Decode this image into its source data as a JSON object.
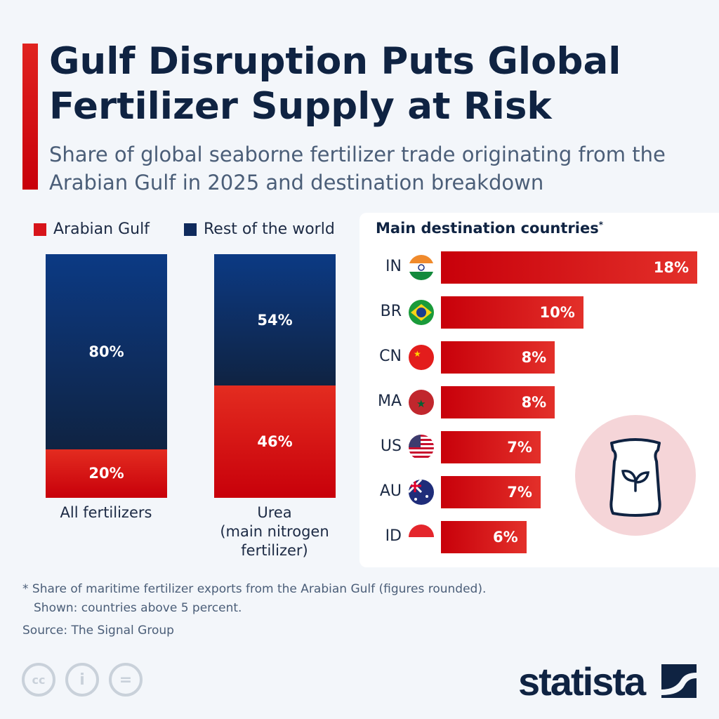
{
  "header": {
    "title": "Gulf Disruption Puts Global Fertilizer Supply at Risk",
    "subtitle": "Share of global seaborne fertilizer trade originating from the Arabian Gulf in 2025 and destination breakdown"
  },
  "colors": {
    "arabian_gulf": "#d7141a",
    "rest_of_world": "#0f2a5c",
    "accent": "#d7141a",
    "navy": "#0f2342",
    "pink_circle": "#f5d5d8"
  },
  "chart_data": [
    {
      "type": "bar",
      "stacked": true,
      "categories": [
        "All fertilizers",
        "Urea\n(main nitrogen fertilizer)"
      ],
      "series": [
        {
          "name": "Arabian Gulf",
          "values": [
            20,
            46
          ],
          "labels": [
            "20%",
            "46%"
          ]
        },
        {
          "name": "Rest of the world",
          "values": [
            80,
            54
          ],
          "labels": [
            "80%",
            "54%"
          ]
        }
      ],
      "legend": "top",
      "ylim": [
        0,
        100
      ]
    },
    {
      "type": "bar",
      "orientation": "horizontal",
      "title": "Main destination countries",
      "title_marker": "*",
      "categories": [
        "IN",
        "BR",
        "CN",
        "MA",
        "US",
        "AU",
        "ID"
      ],
      "flags": [
        "india-flag",
        "brazil-flag",
        "china-flag",
        "morocco-flag",
        "usa-flag",
        "australia-flag",
        "indonesia-flag"
      ],
      "values": [
        18,
        10,
        8,
        8,
        7,
        7,
        6
      ],
      "labels": [
        "18%",
        "10%",
        "8%",
        "8%",
        "7%",
        "7%",
        "6%"
      ],
      "xlim": [
        0,
        18
      ]
    }
  ],
  "illustration": "fertilizer-bag-icon",
  "footer": {
    "note_line1": "* Share of maritime fertilizer exports from the Arabian Gulf (figures rounded).",
    "note_line2": "Shown: countries above 5 percent.",
    "source": "Source: The Signal Group",
    "cc_icons": [
      "cc",
      "i",
      "="
    ],
    "logo": "statista"
  }
}
